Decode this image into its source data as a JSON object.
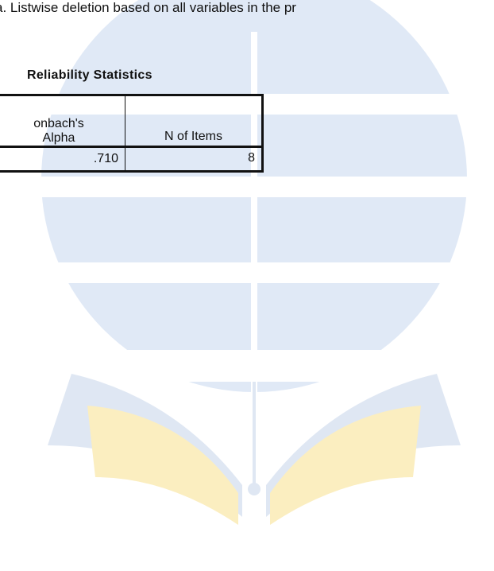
{
  "footnote": "a. Listwise deletion based on all variables in the pr",
  "table": {
    "title": "Reliability Statistics",
    "header": [
      [
        "onbach's",
        "Alpha"
      ],
      [
        "N of Items"
      ]
    ],
    "rows": [
      [
        ".710",
        8
      ]
    ]
  }
}
